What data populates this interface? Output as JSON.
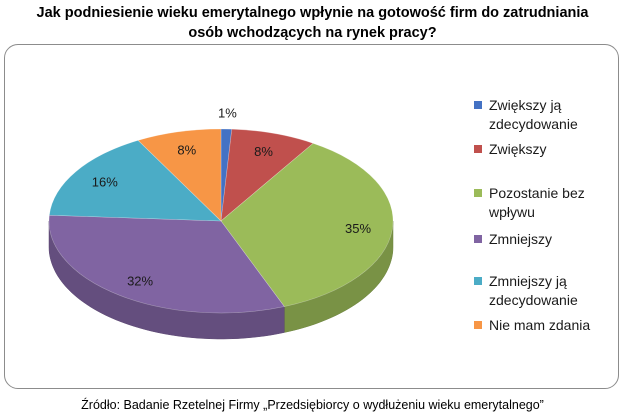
{
  "title_lines": [
    "Jak  podniesienie wieku emerytalnego wpłynie na gotowość firm do zatrudniania",
    "osób wchodzących na rynek pracy?"
  ],
  "source": "Źródło: Badanie Rzetelnej Firmy „Przedsiębiorcy o wydłużeniu wieku emerytalnego”",
  "chart_data": {
    "type": "pie",
    "title": "Jak  podniesienie wieku emerytalnego wpłynie na gotowość firm do zatrudniania osób wchodzących na rynek pracy?",
    "legend_position": "right",
    "slices": [
      {
        "name": "Zwiększy ją zdecydowanie",
        "value": 1,
        "label": "1%",
        "color": "#4472C4"
      },
      {
        "name": "Zwiększy",
        "value": 8,
        "label": "8%",
        "color": "#C0504D"
      },
      {
        "name": "Pozostanie bez wpływu",
        "value": 35,
        "label": "35%",
        "color": "#9BBB59"
      },
      {
        "name": "Zmniejszy",
        "value": 32,
        "label": "32%",
        "color": "#8064A2"
      },
      {
        "name": "Zmniejszy ją zdecydowanie",
        "value": 16,
        "label": "16%",
        "color": "#4BACC6"
      },
      {
        "name": "Nie mam zdania",
        "value": 8,
        "label": "8%",
        "color": "#F79646"
      }
    ]
  }
}
